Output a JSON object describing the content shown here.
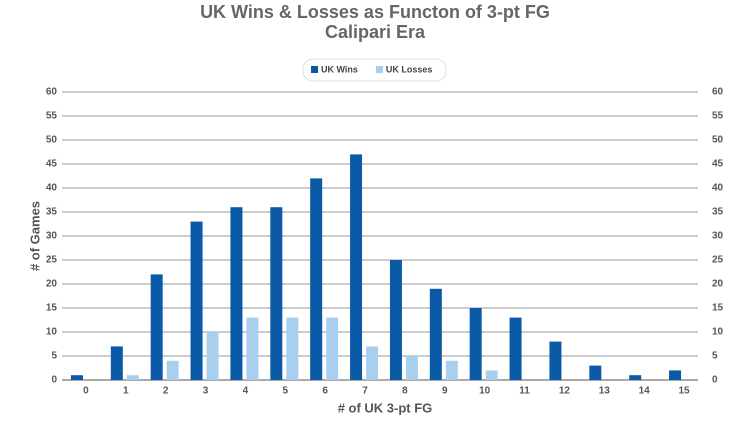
{
  "chart_data": {
    "type": "bar",
    "title": "UK Wins & Losses as Functon of 3-pt FG",
    "subtitle": "Calipari Era",
    "x_label": "# of UK 3-pt FG",
    "y_label": "# of Games",
    "categories": [
      "0",
      "1",
      "2",
      "3",
      "4",
      "5",
      "6",
      "7",
      "8",
      "9",
      "10",
      "11",
      "12",
      "13",
      "14",
      "15"
    ],
    "series": [
      {
        "name": "UK Wins",
        "color": "#0b5aa8",
        "values": [
          1,
          7,
          22,
          33,
          36,
          36,
          42,
          47,
          25,
          19,
          15,
          13,
          8,
          3,
          1,
          2
        ]
      },
      {
        "name": "UK Losses",
        "color": "#a9cfee",
        "values": [
          0,
          1,
          4,
          10,
          13,
          13,
          13,
          7,
          5,
          4,
          2,
          0,
          0,
          0,
          0,
          0
        ]
      }
    ],
    "ylim": [
      0,
      60
    ],
    "yticks": [
      0,
      5,
      10,
      15,
      20,
      25,
      30,
      35,
      40,
      45,
      50,
      55,
      60
    ],
    "grid": true,
    "legend": "top"
  }
}
